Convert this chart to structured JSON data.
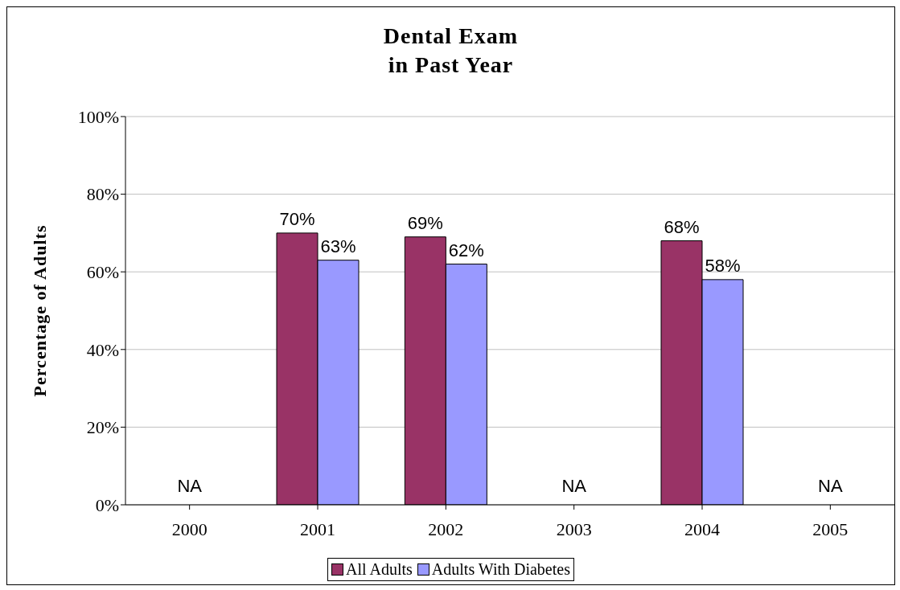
{
  "chart_data": {
    "type": "bar",
    "title": "Dental Exam\nin Past Year",
    "ylabel": "Percentage of Adults",
    "categories": [
      "2000",
      "2001",
      "2002",
      "2003",
      "2004",
      "2005"
    ],
    "series": [
      {
        "name": "All Adults",
        "color": "#993366",
        "values": [
          null,
          70,
          69,
          null,
          68,
          null
        ],
        "value_labels": [
          null,
          "70%",
          "69%",
          null,
          "68%",
          null
        ]
      },
      {
        "name": "Adults With Diabetes",
        "color": "#9999ff",
        "values": [
          null,
          63,
          62,
          null,
          58,
          null
        ],
        "value_labels": [
          null,
          "63%",
          "62%",
          null,
          "58%",
          null
        ]
      }
    ],
    "ylim": [
      0,
      100
    ],
    "yticks": [
      {
        "value": 0,
        "label": "0%"
      },
      {
        "value": 20,
        "label": "20%"
      },
      {
        "value": 40,
        "label": "40%"
      },
      {
        "value": 60,
        "label": "60%"
      },
      {
        "value": 80,
        "label": "80%"
      },
      {
        "value": 100,
        "label": "100%"
      }
    ],
    "grid": "y",
    "legend": "bottom",
    "annotations": [
      "NA",
      "NA",
      "NA"
    ]
  }
}
